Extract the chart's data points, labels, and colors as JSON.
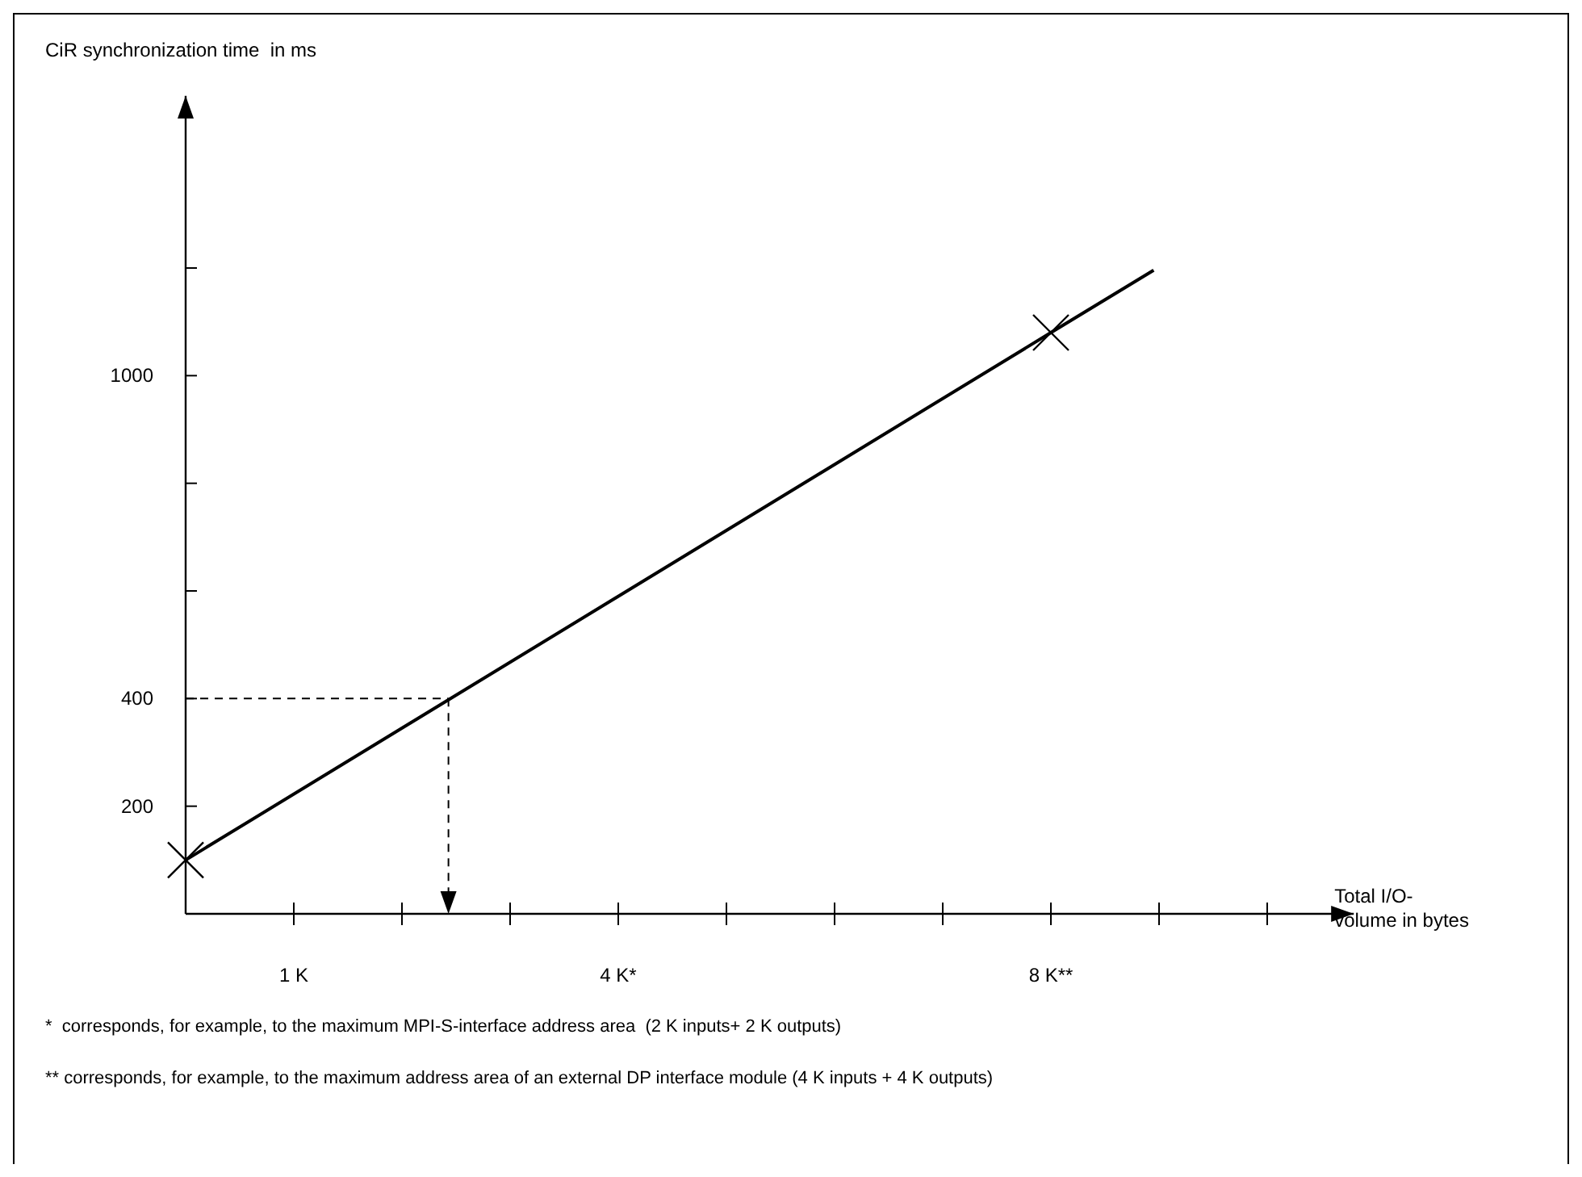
{
  "chart_data": {
    "type": "line",
    "ylabel": "CiR synchronization time  in ms",
    "xlabel": "Total I/O-\nvolume in bytes",
    "xlim": [
      0,
      10.8
    ],
    "ylim": [
      0,
      1520
    ],
    "xticks": [
      {
        "value": 1,
        "label": "1 K"
      },
      {
        "value": 2,
        "label": null
      },
      {
        "value": 3,
        "label": null
      },
      {
        "value": 4,
        "label": "4 K*"
      },
      {
        "value": 5,
        "label": null
      },
      {
        "value": 6,
        "label": null
      },
      {
        "value": 7,
        "label": null
      },
      {
        "value": 8,
        "label": "8 K**"
      },
      {
        "value": 9,
        "label": null
      },
      {
        "value": 10,
        "label": null
      }
    ],
    "yticks": [
      200,
      400,
      {
        "value": 600,
        "label": null
      },
      {
        "value": 800,
        "label": null
      },
      1000,
      {
        "value": 1200,
        "label": null
      }
    ],
    "grid": false,
    "series": [
      {
        "color": "#000000",
        "line_style": "solid",
        "x": [
          0,
          8,
          8.95
        ],
        "values": [
          100,
          1080,
          1196
        ]
      },
      {
        "type": "scatter",
        "color": "#000000",
        "marker": "cross",
        "x": [
          0,
          8
        ],
        "values": [
          100,
          1080
        ]
      }
    ],
    "ref_lines": [
      {
        "axis": "y",
        "value": 400,
        "line_style": "dashed",
        "color": "#000000"
      },
      {
        "axis": "x",
        "value": 2.43,
        "line_style": "dashed",
        "color": "#000000"
      }
    ],
    "annotations": [
      "*  corresponds, for example, to the maximum MPI-S-interface address area  (2 K inputs+ 2 K outputs)",
      "** corresponds, for example, to the maximum address area of an external DP interface module (4 K inputs + 4 K outputs)"
    ]
  }
}
